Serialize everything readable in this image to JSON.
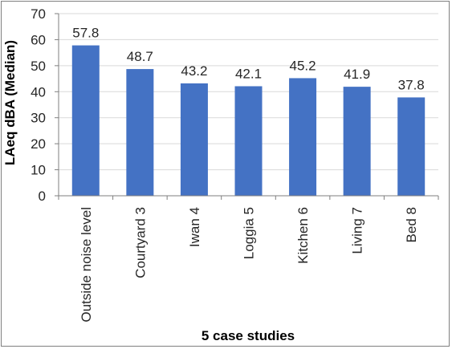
{
  "chart_data": {
    "type": "bar",
    "categories": [
      "Outside noise level",
      "Courtyard 3",
      "Iwan 4",
      "Loggia 5",
      "Kitchen 6",
      "Living 7",
      "Bed 8"
    ],
    "values": [
      57.8,
      48.7,
      43.2,
      42.1,
      45.2,
      41.9,
      37.8
    ],
    "data_labels": [
      "57.8",
      "48.7",
      "43.2",
      "42.1",
      "45.2",
      "41.9",
      "37.8"
    ],
    "title": "",
    "xlabel": "5 case studies",
    "ylabel": "LAeq dBA (Median)",
    "ylim": [
      0,
      70
    ],
    "yticks": [
      "0",
      "10",
      "20",
      "30",
      "40",
      "50",
      "60",
      "70"
    ],
    "grid": true,
    "legend": "none",
    "colors": {
      "bar": "#4472c4",
      "grid": "#d9d9d9",
      "axis": "#7f7f7f"
    }
  }
}
